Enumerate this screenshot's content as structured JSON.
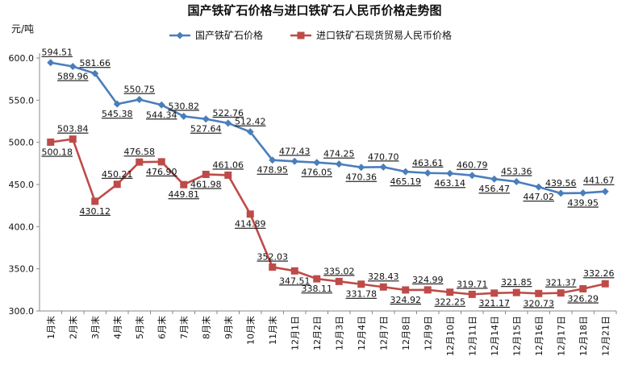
{
  "chart_data": {
    "type": "line",
    "title": "国产铁矿石价格与进口铁矿石人民币价格走势图",
    "ylabel": "元/吨",
    "ylim": [
      300,
      600
    ],
    "yticks": [
      "300.0",
      "350.0",
      "400.0",
      "450.0",
      "500.0",
      "550.0",
      "600.0"
    ],
    "legend_position": "top",
    "categories": [
      "1月末",
      "2月末",
      "3月末",
      "4月末",
      "5月末",
      "6月末",
      "7月末",
      "8月末",
      "9月末",
      "10月末",
      "11月末",
      "12月1日",
      "12月2日",
      "12月3日",
      "12月4日",
      "12月7日",
      "12月8日",
      "12月9日",
      "12月10日",
      "12月11日",
      "12月14日",
      "12月15日",
      "12月16日",
      "12月17日",
      "12月18日",
      "12月21日"
    ],
    "series": [
      {
        "name": "国产铁矿石价格",
        "color": "#4a7ebb",
        "marker": "diamond",
        "values": [
          594.51,
          589.96,
          581.66,
          545.38,
          550.75,
          544.34,
          530.82,
          527.64,
          522.76,
          512.42,
          478.95,
          477.43,
          476.05,
          474.25,
          470.36,
          470.7,
          465.19,
          463.61,
          463.14,
          460.79,
          456.47,
          453.36,
          447.02,
          439.56,
          439.95,
          441.67
        ],
        "labels": [
          "594.51",
          "589.96",
          "581.66",
          "545.38",
          "550.75",
          "544.34",
          "530.82",
          "527.64",
          "522.76",
          "512.42",
          "478.95",
          "477.43",
          "476.05",
          "474.25",
          "470.36",
          "470.70",
          "465.19",
          "463.61",
          "463.14",
          "460.79",
          "456.47",
          "453.36",
          "447.02",
          "439.56",
          "439.95",
          "441.67"
        ]
      },
      {
        "name": "进口铁矿石现货贸易人民币价格",
        "color": "#be4b48",
        "marker": "square",
        "values": [
          500.18,
          503.84,
          430.12,
          450.21,
          476.58,
          476.9,
          449.81,
          461.98,
          461.06,
          414.89,
          352.03,
          347.51,
          338.11,
          335.02,
          331.78,
          328.43,
          324.92,
          324.99,
          322.25,
          319.71,
          321.17,
          321.85,
          320.73,
          321.37,
          326.29,
          332.26
        ],
        "labels": [
          "500.18",
          "503.84",
          "430.12",
          "450.21",
          "476.58",
          "476.90",
          "449.81",
          "461.98",
          "461.06",
          "414.89",
          "352.03",
          "347.51",
          "338.11",
          "335.02",
          "331.78",
          "328.43",
          "324.92",
          "324.99",
          "322.25",
          "319.71",
          "321.17",
          "321.85",
          "320.73",
          "321.37",
          "326.29",
          "332.26"
        ]
      }
    ]
  }
}
